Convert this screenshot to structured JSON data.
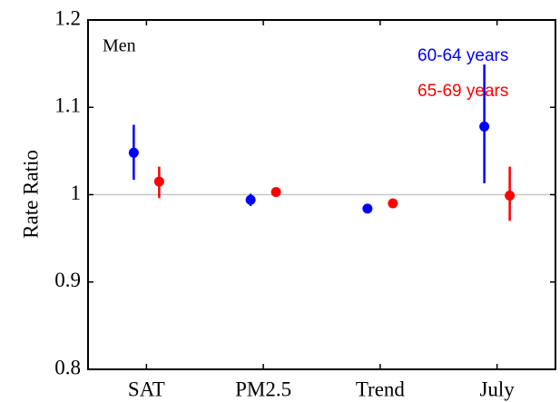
{
  "chart_data": {
    "type": "errorbar",
    "y_label": "Rate Ratio",
    "annotation": "Men",
    "categories": [
      "SAT",
      "PM2.5",
      "Trend",
      "July"
    ],
    "series": [
      {
        "name": "60-64 years",
        "color": "#0000ff",
        "values": [
          1.048,
          0.994,
          0.984,
          1.078
        ],
        "lower": [
          1.017,
          0.987,
          0.984,
          1.013
        ],
        "upper": [
          1.08,
          1.001,
          0.984,
          1.149
        ]
      },
      {
        "name": "65-69 years",
        "color": "#ff0000",
        "values": [
          1.015,
          1.003,
          0.99,
          0.999
        ],
        "lower": [
          0.996,
          1.003,
          0.99,
          0.97
        ],
        "upper": [
          1.032,
          1.003,
          0.99,
          1.032
        ]
      }
    ],
    "ylim": [
      0.8,
      1.2
    ],
    "yticks": [
      0.8,
      0.9,
      1,
      1.1,
      1.2
    ],
    "hline": 1
  }
}
